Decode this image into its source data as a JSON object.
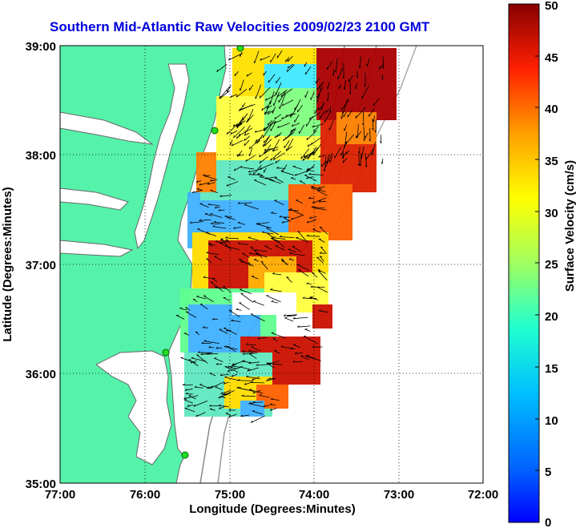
{
  "title": "Southern Mid-Atlantic Raw Velocities 2009/02/23 2100 GMT",
  "x_axis": {
    "label": "Longitude (Degrees:Minutes)",
    "ticks": [
      "77:00",
      "76:00",
      "75:00",
      "74:00",
      "73:00",
      "72:00"
    ]
  },
  "y_axis": {
    "label": "Latitude (Degrees:Minutes)",
    "ticks": [
      "39:00",
      "38:00",
      "37:00",
      "36:00",
      "35:00"
    ]
  },
  "colorbar": {
    "label": "Surface Velocity (cm/s)",
    "ticks": [
      "50",
      "45",
      "40",
      "35",
      "30",
      "25",
      "20",
      "15",
      "10",
      "5",
      "0"
    ],
    "min": 0,
    "max": 50
  },
  "colors": {
    "land": "#55f2aa",
    "coast": "#666666",
    "grid": "#000000",
    "station": "#22dd22",
    "title": "#0000dd"
  }
}
